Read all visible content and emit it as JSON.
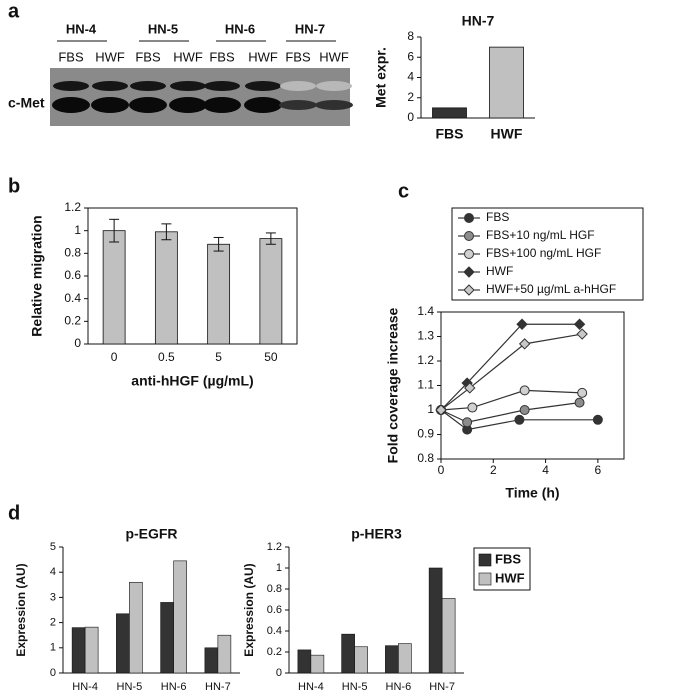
{
  "panel_labels": [
    "a",
    "b",
    "c",
    "d"
  ],
  "blot": {
    "groups": [
      "HN-4",
      "HN-5",
      "HN-6",
      "HN-7"
    ],
    "lanes": [
      "FBS",
      "HWF",
      "FBS",
      "HWF",
      "FBS",
      "HWF",
      "FBS",
      "HWF"
    ],
    "band_label": "c-Met"
  },
  "chart_data": [
    {
      "type": "bar",
      "title": "HN-7",
      "y_label": "Met expr.",
      "categories": [
        "FBS",
        "HWF"
      ],
      "values": [
        1,
        7
      ],
      "colors": [
        "#333333",
        "#c0c0c0"
      ],
      "ylim": [
        0,
        8
      ],
      "yticks": [
        0,
        2,
        4,
        6,
        8
      ]
    },
    {
      "type": "bar",
      "y_label": "Relative migration",
      "x_label": "anti-hHGF (µg/mL)",
      "categories": [
        "0",
        "0.5",
        "5",
        "50"
      ],
      "values": [
        1.0,
        0.99,
        0.88,
        0.93
      ],
      "errors": [
        0.1,
        0.07,
        0.06,
        0.05
      ],
      "color": "#c0c0c0",
      "ylim": [
        0,
        1.2
      ],
      "yticks": [
        0,
        0.2,
        0.4,
        0.6,
        0.8,
        1,
        1.2
      ]
    },
    {
      "type": "line",
      "y_label": "Fold coverage increase",
      "x_label": "Time (h)",
      "xlim": [
        0,
        7
      ],
      "xticks": [
        0,
        2,
        4,
        6
      ],
      "ylim": [
        0.8,
        1.4
      ],
      "yticks": [
        0.8,
        0.9,
        1,
        1.1,
        1.2,
        1.3,
        1.4
      ],
      "series": [
        {
          "name": "FBS",
          "color": "#333333",
          "marker": "circle",
          "x": [
            0,
            1,
            3,
            6
          ],
          "values": [
            1,
            0.92,
            0.96,
            0.96
          ]
        },
        {
          "name": "FBS+10 ng/mL HGF",
          "color": "#8c8c8c",
          "marker": "circle",
          "x": [
            0,
            1,
            3.2,
            5.3
          ],
          "values": [
            1,
            0.95,
            1.0,
            1.03
          ]
        },
        {
          "name": "FBS+100 ng/mL HGF",
          "color": "#d0d0d0",
          "marker": "circle",
          "x": [
            0,
            1.2,
            3.2,
            5.4
          ],
          "values": [
            1,
            1.01,
            1.08,
            1.07
          ]
        },
        {
          "name": "HWF",
          "color": "#333333",
          "marker": "diamond",
          "x": [
            0,
            1,
            3.1,
            5.3
          ],
          "values": [
            1,
            1.11,
            1.35,
            1.35
          ]
        },
        {
          "name": "HWF+50 µg/mL a-hHGF",
          "color": "#c8c8c8",
          "marker": "diamond",
          "x": [
            0,
            1.1,
            3.2,
            5.4
          ],
          "values": [
            1,
            1.09,
            1.27,
            1.31
          ]
        }
      ]
    },
    {
      "type": "bar",
      "title": "p-EGFR",
      "y_label": "Expression (AU)",
      "categories": [
        "HN-4",
        "HN-5",
        "HN-6",
        "HN-7"
      ],
      "ylim": [
        0,
        5
      ],
      "yticks": [
        0,
        1,
        2,
        3,
        4,
        5
      ],
      "series": [
        {
          "color": "#333333",
          "values": [
            1.8,
            2.35,
            2.8,
            1.0
          ]
        },
        {
          "color": "#c0c0c0",
          "values": [
            1.82,
            3.6,
            4.45,
            1.5
          ]
        }
      ]
    },
    {
      "type": "bar",
      "title": "p-HER3",
      "y_label": "Expression (AU)",
      "categories": [
        "HN-4",
        "HN-5",
        "HN-6",
        "HN-7"
      ],
      "ylim": [
        0,
        1.2
      ],
      "yticks": [
        0,
        0.2,
        0.4,
        0.6,
        0.8,
        1,
        1.2
      ],
      "series": [
        {
          "name": "FBS",
          "color": "#333333",
          "values": [
            0.22,
            0.37,
            0.26,
            1.0
          ]
        },
        {
          "name": "HWF",
          "color": "#c0c0c0",
          "values": [
            0.17,
            0.25,
            0.28,
            0.71
          ]
        }
      ]
    }
  ]
}
